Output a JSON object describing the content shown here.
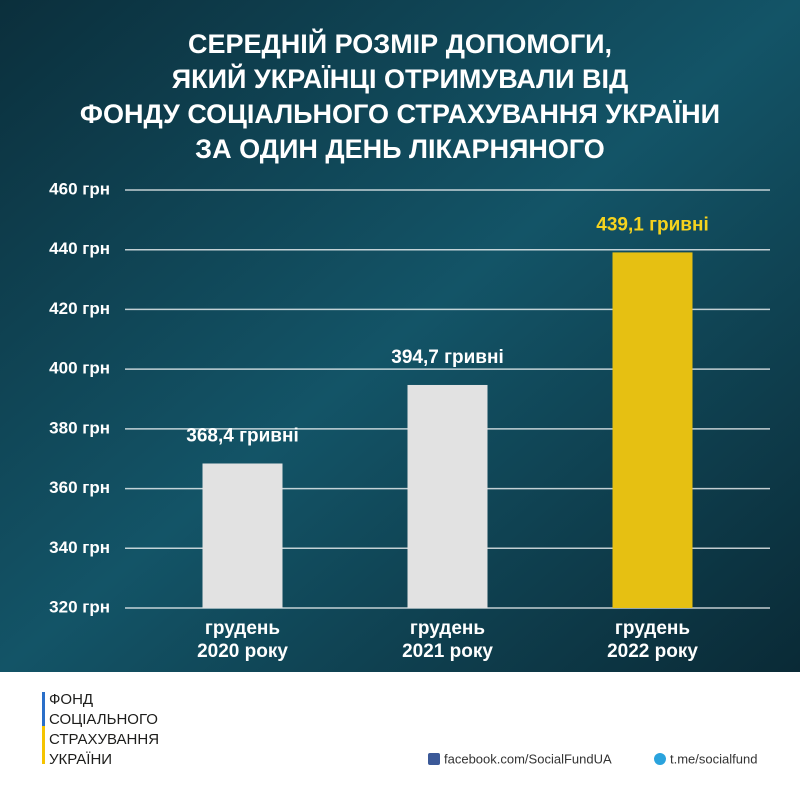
{
  "chart_data": {
    "type": "bar",
    "title": [
      "СЕРЕДНІЙ РОЗМІР ДОПОМОГИ,",
      "ЯКИЙ УКРАЇНЦІ ОТРИМУВАЛИ ВІД",
      "ФОНДУ СОЦІАЛЬНОГО СТРАХУВАННЯ УКРАЇНИ",
      "ЗА ОДИН ДЕНЬ ЛІКАРНЯНОГО"
    ],
    "categories": [
      "грудень\n2020 року",
      "грудень\n2021 року",
      "грудень\n2022 року"
    ],
    "values": [
      368.4,
      394.7,
      439.1
    ],
    "value_labels": [
      "368,4 гривні",
      "394,7 гривні",
      "439,1 гривні"
    ],
    "colors": [
      "#e2e2e2",
      "#e2e2e2",
      "#e6c012"
    ],
    "label_colors": [
      "#ffffff",
      "#ffffff",
      "#f6d31e"
    ],
    "ylim": [
      320,
      460
    ],
    "yticks": [
      {
        "value": 320,
        "label": "320 грн"
      },
      {
        "value": 340,
        "label": "340 грн"
      },
      {
        "value": 360,
        "label": "360 грн"
      },
      {
        "value": 380,
        "label": "380 грн"
      },
      {
        "value": 400,
        "label": "400 грн"
      },
      {
        "value": 420,
        "label": "420 грн"
      },
      {
        "value": 440,
        "label": "440 грн"
      },
      {
        "value": 460,
        "label": "460 грн"
      }
    ],
    "grid": true
  },
  "footer": {
    "logo_lines": [
      "ФОНД",
      "СОЦІАЛЬНОГО",
      "СТРАХУВАННЯ",
      "УКРАЇНИ"
    ],
    "facebook": "facebook.com/SocialFundUA",
    "telegram": "t.me/socialfund"
  }
}
